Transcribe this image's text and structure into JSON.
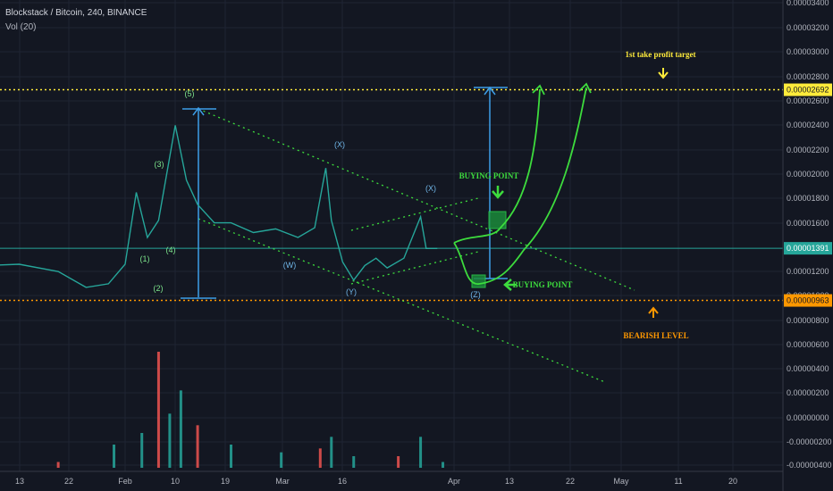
{
  "header": {
    "symbol": "Blockstack / Bitcoin, 240, BINANCE",
    "volume_indicator": "Vol (20)"
  },
  "chart_data": {
    "type": "line",
    "title": "Blockstack / Bitcoin, 240, BINANCE",
    "x_ticks": [
      "13",
      "22",
      "Feb",
      "10",
      "19",
      "Mar",
      "16",
      "Apr",
      "13",
      "22",
      "May",
      "11",
      "20"
    ],
    "y_ticks": [
      "0.00003400",
      "0.00003200",
      "0.00003000",
      "0.00002800",
      "0.00002600",
      "0.00002400",
      "0.00002200",
      "0.00002000",
      "0.00001800",
      "0.00001600",
      "0.00001200",
      "0.00001000",
      "0.00000800",
      "0.00000600",
      "0.00000400",
      "0.00000200",
      "0.00000000",
      "-0.00000200",
      "-0.00000400"
    ],
    "ylim": [
      -4e-06,
      3.42e-05
    ],
    "current_price": "0.00001391",
    "levels": [
      {
        "label": "0.00002692",
        "value": 2.692e-05,
        "color": "#ffeb3b",
        "note": "1st take profit target"
      },
      {
        "label": "0.00000963",
        "value": 9.63e-06,
        "color": "#ff9800",
        "note": "BEARISH LEVEL"
      }
    ],
    "series": [
      {
        "name": "Price",
        "dates": [
          "Jan 07",
          "Jan 13",
          "Jan 20",
          "Jan 25",
          "Jan 29",
          "Feb 01",
          "Feb 03",
          "Feb 05",
          "Feb 07",
          "Feb 10",
          "Feb 12",
          "Feb 14",
          "Feb 17",
          "Feb 20",
          "Feb 24",
          "Feb 28",
          "Mar 04",
          "Mar 07",
          "Mar 09",
          "Mar 10",
          "Mar 12",
          "Mar 14",
          "Mar 16",
          "Mar 18",
          "Mar 20",
          "Mar 23",
          "Mar 26",
          "Mar 27",
          "Mar 29"
        ],
        "values": [
          1.25e-05,
          1.26e-05,
          1.2e-05,
          1.07e-05,
          1.1e-05,
          1.26e-05,
          1.85e-05,
          1.48e-05,
          1.62e-05,
          2.4e-05,
          1.95e-05,
          1.75e-05,
          1.6e-05,
          1.6e-05,
          1.52e-05,
          1.55e-05,
          1.48e-05,
          1.56e-05,
          2.05e-05,
          1.62e-05,
          1.28e-05,
          1.13e-05,
          1.25e-05,
          1.31e-05,
          1.23e-05,
          1.31e-05,
          1.65e-05,
          1.39e-05,
          1.39e-05
        ]
      }
    ],
    "wave_labels": [
      "(1)",
      "(2)",
      "(3)",
      "(4)",
      "(5)",
      "(W)",
      "(X)",
      "(Y)",
      "(X)",
      "(Z)"
    ],
    "annotations": [
      "1st take profit target",
      "BUYING POINT",
      "BUYING POINT",
      "BEARISH LEVEL"
    ],
    "volume": {
      "name": "Vol (20)",
      "dates": [
        "Jan 07",
        "Jan 20",
        "Jan 30",
        "Feb 04",
        "Feb 07",
        "Feb 09",
        "Feb 11",
        "Feb 14",
        "Feb 20",
        "Mar 01",
        "Mar 08",
        "Mar 10",
        "Mar 14",
        "Mar 22",
        "Mar 26",
        "Mar 30"
      ],
      "values": [
        3e-07,
        3e-07,
        1.2e-06,
        1.8e-06,
        6e-06,
        2.8e-06,
        4e-06,
        2.2e-06,
        1.2e-06,
        8e-07,
        1e-06,
        1.6e-06,
        6e-07,
        6e-07,
        1.6e-06,
        3e-07
      ]
    },
    "grid": true,
    "colors": {
      "background": "#131722",
      "grid": "#1f2433",
      "price_line": "#26a69a",
      "wave_label": "#7ce38b",
      "wave_label_blue": "#6fb4e6",
      "projection": "#3ddc3d",
      "measure": "#3d9ee8",
      "take_profit": "#ffeb3b",
      "bearish": "#ff9800",
      "current_price": "#26a69a",
      "volume_up": "#26a69a",
      "volume_down": "#ef5350"
    }
  }
}
